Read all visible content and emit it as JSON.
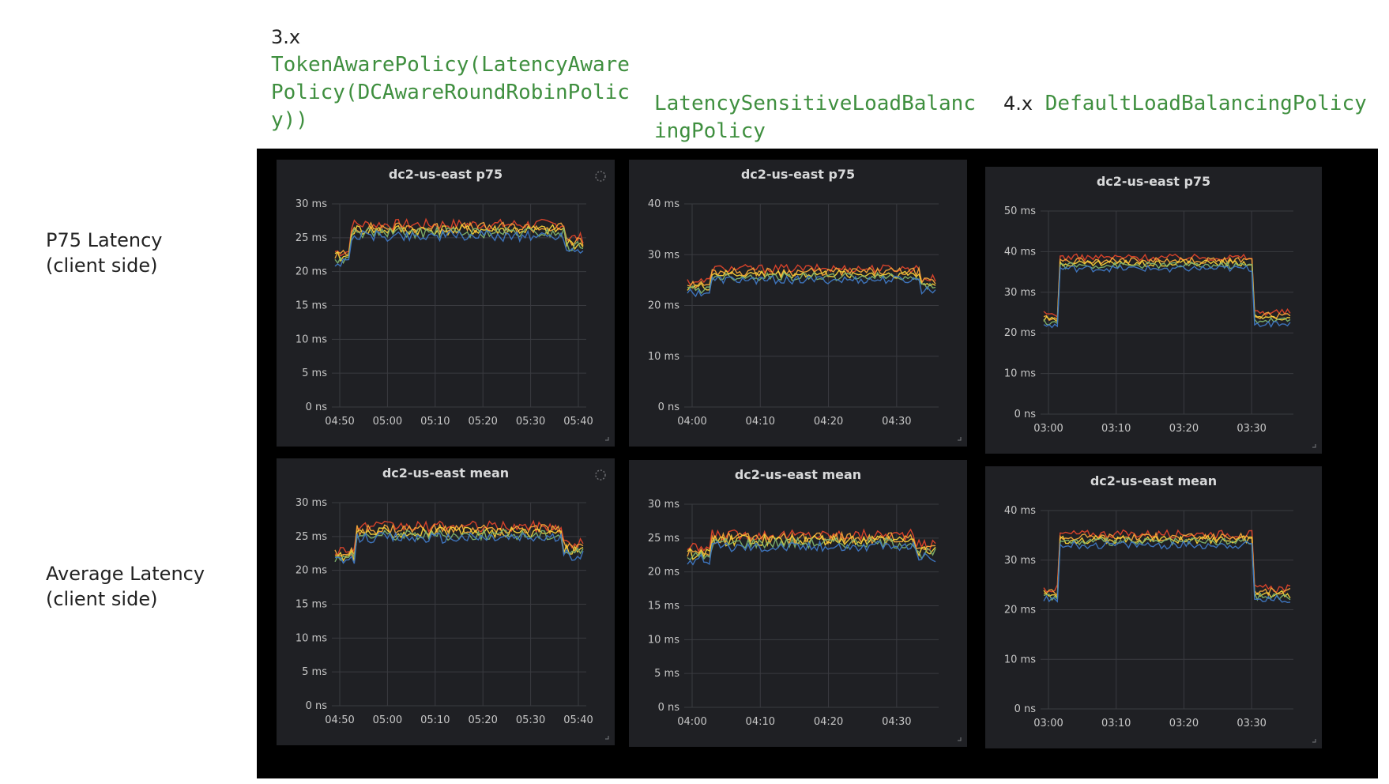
{
  "headers": [
    {
      "version": "3.x",
      "policy": "TokenAwarePolicy(LatencyAwarePolicy(DCAwareRoundRobinPolicy))"
    },
    {
      "version": "",
      "policy": "LatencySensitiveLoadBalancingPolicy"
    },
    {
      "version": "4.x",
      "policy": "DefaultLoadBalancingPolicy"
    }
  ],
  "row_labels": [
    "P75 Latency\n(client side)",
    "Average Latency\n(client side)"
  ],
  "colors": {
    "page": "#ffffff",
    "frame": "#000000",
    "panel": "#1f2024",
    "series": [
      "#e0442b",
      "#f2a43a",
      "#f5d23a",
      "#7eb26d",
      "#3f78c4"
    ]
  },
  "chart_data": [
    {
      "type": "line",
      "title": "dc2-us-east p75",
      "x": [
        "04:50",
        "05:00",
        "05:10",
        "05:20",
        "05:30",
        "05:40"
      ],
      "ylim": [
        0,
        30
      ],
      "yticks": [
        "0 ns",
        "5 ms",
        "10 ms",
        "15 ms",
        "20 ms",
        "25 ms",
        "30 ms"
      ],
      "level_before": 22,
      "level_during": 26,
      "level_after": 24,
      "step_up": 0.06,
      "step_down": 0.93,
      "spinner": true
    },
    {
      "type": "line",
      "title": "dc2-us-east p75",
      "x": [
        "04:00",
        "04:10",
        "04:20",
        "04:30"
      ],
      "ylim": [
        0,
        40
      ],
      "yticks": [
        "0 ns",
        "10 ms",
        "20 ms",
        "30 ms",
        "40 ms"
      ],
      "level_before": 23.5,
      "level_during": 26,
      "level_after": 24,
      "step_up": 0.1,
      "step_down": 0.94,
      "spinner": false
    },
    {
      "type": "line",
      "title": "dc2-us-east p75",
      "x": [
        "03:00",
        "03:10",
        "03:20",
        "03:30"
      ],
      "ylim": [
        0,
        50
      ],
      "yticks": [
        "0 ns",
        "10 ms",
        "20 ms",
        "30 ms",
        "40 ms",
        "50 ms"
      ],
      "level_before": 23,
      "level_during": 37,
      "level_after": 23.5,
      "step_up": 0.06,
      "step_down": 0.85,
      "spinner": false
    },
    {
      "type": "line",
      "title": "dc2-us-east mean",
      "x": [
        "04:50",
        "05:00",
        "05:10",
        "05:20",
        "05:30",
        "05:40"
      ],
      "ylim": [
        0,
        30
      ],
      "yticks": [
        "0 ns",
        "5 ms",
        "10 ms",
        "15 ms",
        "20 ms",
        "25 ms",
        "30 ms"
      ],
      "level_before": 22,
      "level_during": 25.5,
      "level_after": 23,
      "step_up": 0.08,
      "step_down": 0.92,
      "spinner": true
    },
    {
      "type": "line",
      "title": "dc2-us-east mean",
      "x": [
        "04:00",
        "04:10",
        "04:20",
        "04:30"
      ],
      "ylim": [
        0,
        30
      ],
      "yticks": [
        "0 ns",
        "5 ms",
        "10 ms",
        "15 ms",
        "20 ms",
        "25 ms",
        "30 ms"
      ],
      "level_before": 22.5,
      "level_during": 24.5,
      "level_after": 23,
      "step_up": 0.1,
      "step_down": 0.92,
      "spinner": false
    },
    {
      "type": "line",
      "title": "dc2-us-east mean",
      "x": [
        "03:00",
        "03:10",
        "03:20",
        "03:30"
      ],
      "ylim": [
        0,
        40
      ],
      "yticks": [
        "0 ns",
        "10 ms",
        "20 ms",
        "30 ms",
        "40 ms"
      ],
      "level_before": 23,
      "level_during": 34,
      "level_after": 23,
      "step_up": 0.06,
      "step_down": 0.85,
      "spinner": false
    }
  ]
}
